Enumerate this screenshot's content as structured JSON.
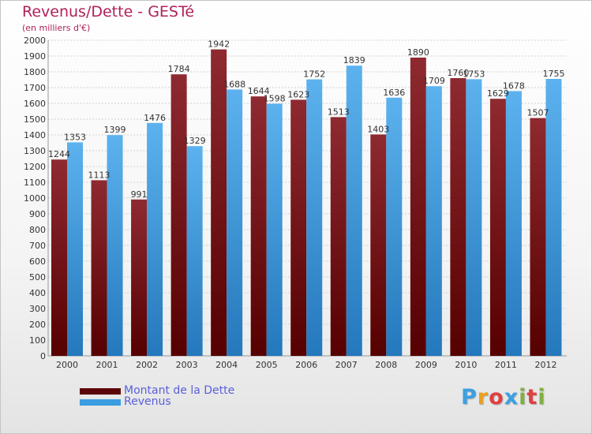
{
  "title": "Revenus/Dette - GESTé",
  "subtitle": "(en milliers d'€)",
  "brand": {
    "letters": [
      "P",
      "r",
      "o",
      "x",
      "i",
      "t",
      "i"
    ],
    "colors": [
      "#3ca0e0",
      "#e8a020",
      "#e04040",
      "#3ca0e0",
      "#80b040",
      "#e04040",
      "#80b040"
    ]
  },
  "colors": {
    "dette": "#7a0f17",
    "revenus": "#3c9de0",
    "title": "#b0205a",
    "legend_text": "#5a60d8"
  },
  "chart_data": {
    "type": "bar",
    "categories": [
      "2000",
      "2001",
      "2002",
      "2003",
      "2004",
      "2005",
      "2006",
      "2007",
      "2008",
      "2009",
      "2010",
      "2011",
      "2012"
    ],
    "series": [
      {
        "name": "Montant de la Dette",
        "values": [
          1244,
          1113,
          991,
          1784,
          1942,
          1644,
          1623,
          1513,
          1403,
          1890,
          1760,
          1629,
          1507
        ],
        "labels": [
          "1244",
          "1113",
          "991",
          "1784",
          "1942",
          "1644",
          "1623",
          "1513",
          "1403",
          "1890",
          "1760",
          "1629",
          "1507"
        ]
      },
      {
        "name": "Revenus",
        "values": [
          1353,
          1399,
          1476,
          1329,
          1688,
          1598,
          1752,
          1839,
          1636,
          1709,
          1753,
          1678,
          1755
        ],
        "labels": [
          "1353",
          "1399",
          "1476",
          "1329",
          "1688",
          "1598",
          "1752",
          "1839",
          "1636",
          "1709",
          "1753",
          "1678",
          "1755"
        ]
      }
    ],
    "title": "Revenus/Dette - GESTé",
    "ylabel": "(en milliers d'€)",
    "ylim": [
      0,
      2000
    ],
    "yticks": [
      "0",
      "100",
      "200",
      "300",
      "400",
      "500",
      "600",
      "700",
      "800",
      "900",
      "1000",
      "1100",
      "1200",
      "1300",
      "1400",
      "1500",
      "1600",
      "1700",
      "1800",
      "1900",
      "2000"
    ],
    "grid": true,
    "legend": "bottom-left"
  }
}
